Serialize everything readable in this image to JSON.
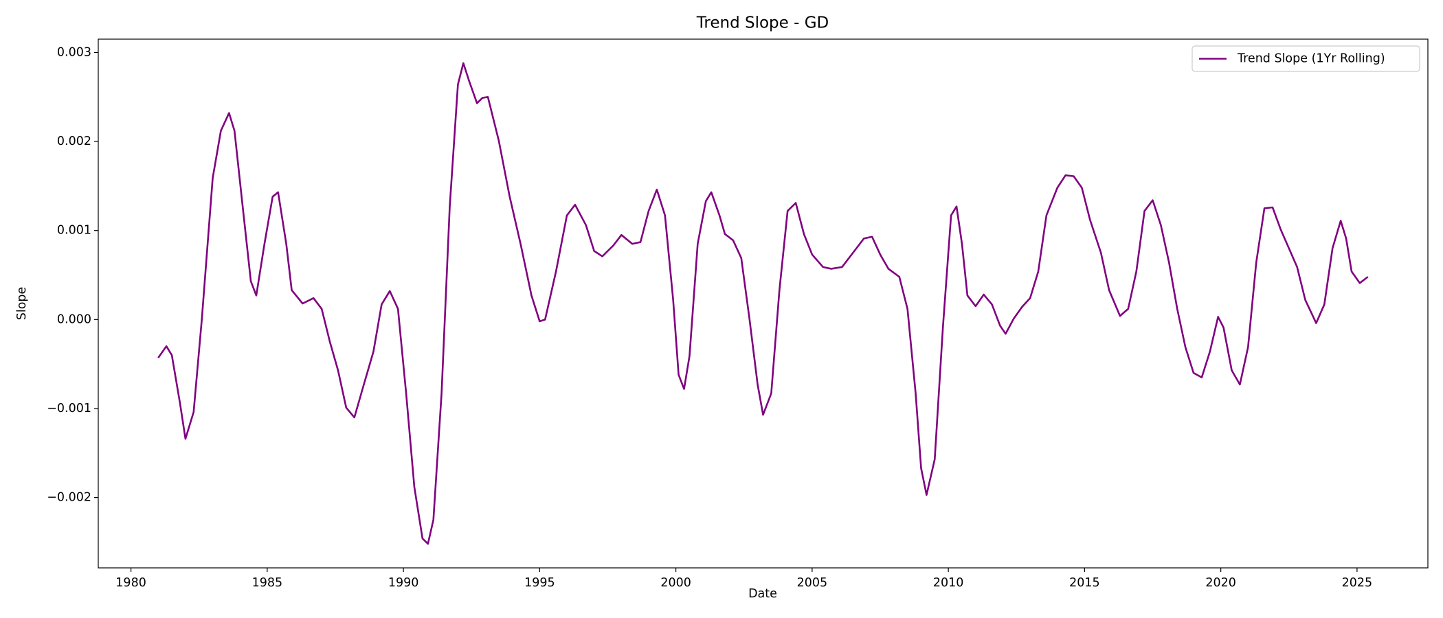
{
  "chart_data": {
    "type": "line",
    "title": "Trend Slope - GD",
    "x_label": "Date",
    "y_label": "Slope",
    "x": [
      1981.0,
      1981.3,
      1981.5,
      1981.8,
      1982.0,
      1982.3,
      1982.6,
      1983.0,
      1983.3,
      1983.6,
      1983.8,
      1984.1,
      1984.4,
      1984.6,
      1984.9,
      1985.2,
      1985.4,
      1985.7,
      1985.9,
      1986.3,
      1986.7,
      1987.0,
      1987.3,
      1987.6,
      1987.9,
      1988.2,
      1988.5,
      1988.9,
      1989.2,
      1989.5,
      1989.8,
      1990.1,
      1990.4,
      1990.7,
      1990.9,
      1991.1,
      1991.4,
      1991.7,
      1992.0,
      1992.2,
      1992.4,
      1992.7,
      1992.9,
      1993.1,
      1993.5,
      1993.9,
      1994.3,
      1994.7,
      1995.0,
      1995.2,
      1995.6,
      1996.0,
      1996.3,
      1996.7,
      1997.0,
      1997.3,
      1997.7,
      1998.0,
      1998.4,
      1998.7,
      1999.0,
      1999.3,
      1999.6,
      1999.9,
      2000.1,
      2000.3,
      2000.5,
      2000.8,
      2001.1,
      2001.3,
      2001.6,
      2001.8,
      2002.1,
      2002.4,
      2002.7,
      2003.0,
      2003.2,
      2003.5,
      2003.8,
      2004.1,
      2004.4,
      2004.7,
      2005.0,
      2005.4,
      2005.7,
      2006.1,
      2006.5,
      2006.9,
      2007.2,
      2007.5,
      2007.8,
      2008.2,
      2008.5,
      2008.8,
      2009.0,
      2009.2,
      2009.5,
      2009.8,
      2010.1,
      2010.3,
      2010.5,
      2010.7,
      2011.0,
      2011.3,
      2011.6,
      2011.9,
      2012.1,
      2012.4,
      2012.7,
      2013.0,
      2013.3,
      2013.6,
      2014.0,
      2014.3,
      2014.6,
      2014.9,
      2015.2,
      2015.6,
      2015.9,
      2016.3,
      2016.6,
      2016.9,
      2017.2,
      2017.5,
      2017.8,
      2018.1,
      2018.4,
      2018.7,
      2019.0,
      2019.3,
      2019.6,
      2019.9,
      2020.1,
      2020.4,
      2020.7,
      2021.0,
      2021.3,
      2021.6,
      2021.9,
      2022.2,
      2022.5,
      2022.8,
      2023.1,
      2023.5,
      2023.8,
      2024.1,
      2024.4,
      2024.6,
      2024.8,
      2025.1,
      2025.4
    ],
    "series": [
      {
        "name": "Trend Slope (1Yr Rolling)",
        "color": "#800080",
        "values": [
          -0.00043,
          -0.0003,
          -0.0004,
          -0.00094,
          -0.00134,
          -0.00104,
          0.0,
          0.00159,
          0.00212,
          0.00232,
          0.00212,
          0.00127,
          0.00043,
          0.00027,
          0.00085,
          0.00138,
          0.00143,
          0.00085,
          0.00033,
          0.00018,
          0.00024,
          0.00012,
          -0.00025,
          -0.00057,
          -0.00099,
          -0.0011,
          -0.00078,
          -0.00036,
          0.00017,
          0.00032,
          0.00012,
          -0.00083,
          -0.00188,
          -0.00246,
          -0.00252,
          -0.00225,
          -0.00083,
          0.00127,
          0.00264,
          0.00288,
          0.00269,
          0.00243,
          0.00249,
          0.0025,
          0.00201,
          0.00138,
          0.00085,
          0.00027,
          -2e-05,
          0.0,
          0.00054,
          0.00117,
          0.00129,
          0.00106,
          0.00077,
          0.00071,
          0.00083,
          0.00095,
          0.00085,
          0.00087,
          0.00122,
          0.00146,
          0.00117,
          0.00022,
          -0.00062,
          -0.00078,
          -0.00041,
          0.00085,
          0.00133,
          0.00143,
          0.00117,
          0.00096,
          0.00089,
          0.00069,
          1e-05,
          -0.00073,
          -0.00107,
          -0.00083,
          0.00033,
          0.00122,
          0.00131,
          0.00096,
          0.00073,
          0.00059,
          0.00057,
          0.00059,
          0.00075,
          0.00091,
          0.00093,
          0.00073,
          0.00057,
          0.00048,
          0.00012,
          -0.00083,
          -0.00167,
          -0.00197,
          -0.00157,
          -9e-05,
          0.00117,
          0.00127,
          0.00085,
          0.00027,
          0.00015,
          0.00028,
          0.00017,
          -7e-05,
          -0.00016,
          1e-05,
          0.00014,
          0.00024,
          0.00054,
          0.00117,
          0.00148,
          0.00162,
          0.00161,
          0.00148,
          0.00112,
          0.00075,
          0.00033,
          4e-05,
          0.00012,
          0.00054,
          0.00122,
          0.00134,
          0.00106,
          0.00064,
          0.00012,
          -0.00031,
          -0.0006,
          -0.00065,
          -0.00036,
          3e-05,
          -9e-05,
          -0.00057,
          -0.00073,
          -0.00031,
          0.00064,
          0.00125,
          0.00126,
          0.00101,
          0.0008,
          0.00059,
          0.00022,
          -4e-05,
          0.00017,
          0.0008,
          0.00111,
          0.00091,
          0.00054,
          0.00041,
          0.00048
        ]
      }
    ],
    "xlim": [
      1978.8,
      2027.6
    ],
    "xticks": [
      1980,
      1985,
      1990,
      1995,
      2000,
      2005,
      2010,
      2015,
      2020,
      2025
    ],
    "ylim": [
      -0.00279,
      0.00315
    ],
    "yticks": [
      {
        "value": -0.002,
        "label": "−0.002"
      },
      {
        "value": -0.001,
        "label": "−0.001"
      },
      {
        "value": 0,
        "label": "0.000"
      },
      0.001,
      0.002,
      0.003
    ],
    "legend": "upper right"
  }
}
